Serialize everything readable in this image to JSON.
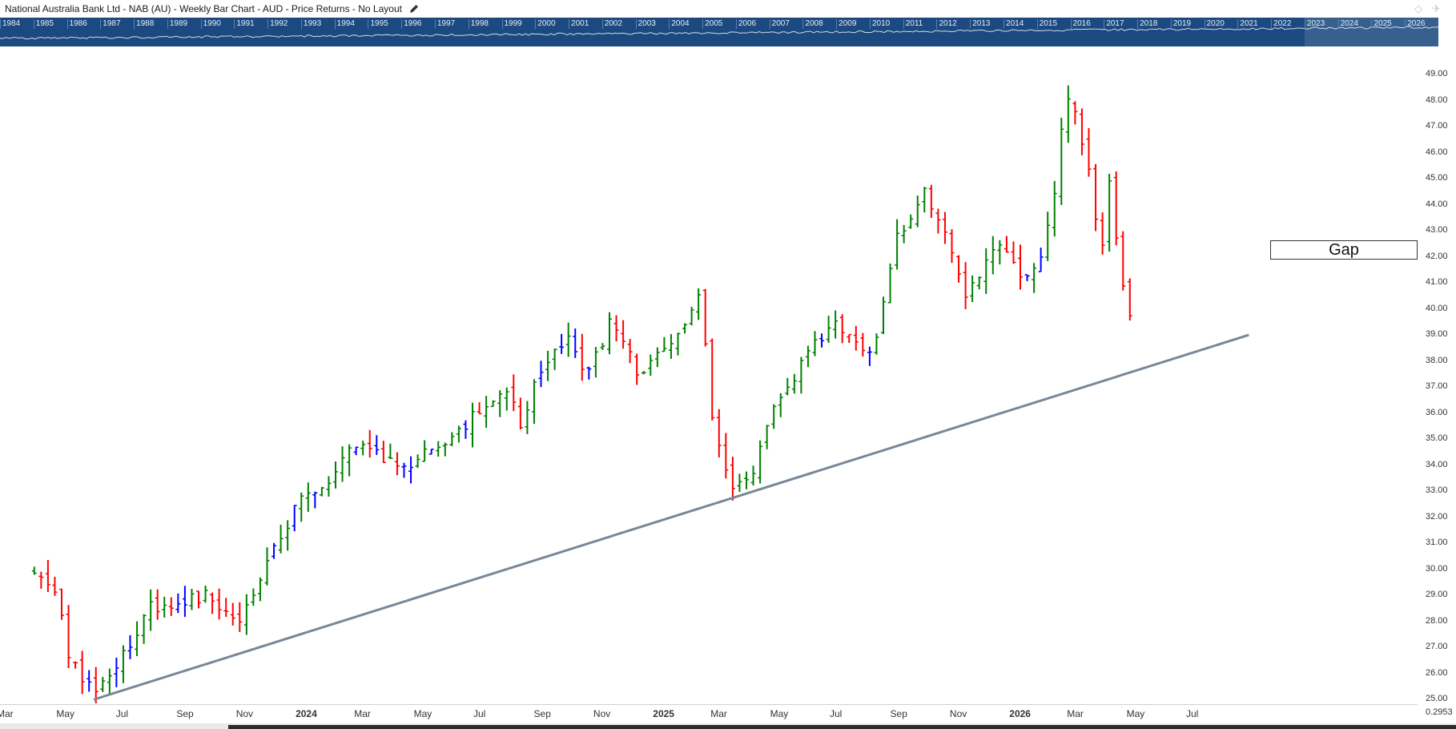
{
  "header": {
    "title": "National Australia Bank Ltd - NAB (AU) - Weekly Bar Chart - AUD - Price Returns - No Layout",
    "edit_icon": "pencil-icon",
    "pin_icon": "diamond-icon",
    "options_icon": "pin-icon"
  },
  "navigator": {
    "years": [
      "1984",
      "1985",
      "1986",
      "1987",
      "1988",
      "1989",
      "1990",
      "1991",
      "1992",
      "1993",
      "1994",
      "1995",
      "1996",
      "1997",
      "1998",
      "1999",
      "2000",
      "2001",
      "2002",
      "2003",
      "2004",
      "2005",
      "2006",
      "2007",
      "2008",
      "2009",
      "2010",
      "2011",
      "2012",
      "2013",
      "2014",
      "2015",
      "2016",
      "2017",
      "2018",
      "2019",
      "2020",
      "2021",
      "2022",
      "2023",
      "2024",
      "2025",
      "2026"
    ],
    "window_start_year": "2023"
  },
  "annotations": {
    "gap_label": "Gap",
    "trendline": {
      "from": {
        "date": "2023-06-05",
        "price": 25.0
      },
      "to": {
        "date": "2026-08-31",
        "price": 39.0
      }
    }
  },
  "corner_value": "0.2953",
  "colors": {
    "up": "#008000",
    "down": "#ff0000",
    "neutral": "#0000ff",
    "trendline": "#778899",
    "navigator": "#1c4a80"
  },
  "chart_data": {
    "type": "bar",
    "subtype": "ohlc-weekly",
    "series_colors": "green = close above previous close, red = close below previous close, blue = unchanged",
    "x_tick_labels": [
      "Mar",
      "May",
      "Jul",
      "Sep",
      "Nov",
      "2024",
      "Mar",
      "May",
      "Jul",
      "Sep",
      "Nov",
      "2025",
      "Mar",
      "May",
      "Jul",
      "Sep",
      "Nov",
      "2026",
      "Mar",
      "May",
      "Jul"
    ],
    "y_tick_labels": [
      "25.00",
      "26.00",
      "27.00",
      "28.00",
      "29.00",
      "30.00",
      "31.00",
      "32.00",
      "33.00",
      "34.00",
      "35.00",
      "36.00",
      "37.00",
      "38.00",
      "39.00",
      "40.00",
      "41.00",
      "42.00",
      "43.00",
      "44.00",
      "45.00",
      "46.00",
      "47.00",
      "48.00",
      "49.00"
    ],
    "ylim": [
      24.7,
      49.8
    ],
    "grid": false,
    "anchors": [
      {
        "date": "2023-04-01",
        "price": 29.9
      },
      {
        "date": "2023-05-01",
        "price": 29.0
      },
      {
        "date": "2023-05-10",
        "price": 26.6
      },
      {
        "date": "2023-06-05",
        "price": 25.3
      },
      {
        "date": "2023-07-01",
        "price": 26.5
      },
      {
        "date": "2023-08-01",
        "price": 28.5
      },
      {
        "date": "2023-09-01",
        "price": 28.8
      },
      {
        "date": "2023-10-01",
        "price": 29.0
      },
      {
        "date": "2023-11-01",
        "price": 28.0
      },
      {
        "date": "2023-12-01",
        "price": 30.5
      },
      {
        "date": "2024-01-01",
        "price": 32.5
      },
      {
        "date": "2024-02-01",
        "price": 33.5
      },
      {
        "date": "2024-03-01",
        "price": 35.0
      },
      {
        "date": "2024-04-01",
        "price": 34.0
      },
      {
        "date": "2024-05-01",
        "price": 34.2
      },
      {
        "date": "2024-06-01",
        "price": 35.0
      },
      {
        "date": "2024-07-01",
        "price": 36.0
      },
      {
        "date": "2024-08-01",
        "price": 37.0
      },
      {
        "date": "2024-08-15",
        "price": 35.5
      },
      {
        "date": "2024-09-01",
        "price": 37.5
      },
      {
        "date": "2024-10-01",
        "price": 39.0
      },
      {
        "date": "2024-10-20",
        "price": 37.2
      },
      {
        "date": "2024-11-15",
        "price": 39.5
      },
      {
        "date": "2024-12-15",
        "price": 37.5
      },
      {
        "date": "2025-01-15",
        "price": 38.5
      },
      {
        "date": "2025-02-15",
        "price": 40.5
      },
      {
        "date": "2025-03-01",
        "price": 35.2
      },
      {
        "date": "2025-03-20",
        "price": 33.0
      },
      {
        "date": "2025-04-07",
        "price": 33.5
      },
      {
        "date": "2025-05-01",
        "price": 36.0
      },
      {
        "date": "2025-06-01",
        "price": 38.0
      },
      {
        "date": "2025-07-01",
        "price": 39.5
      },
      {
        "date": "2025-08-01",
        "price": 38.3
      },
      {
        "date": "2025-08-15",
        "price": 38.8
      },
      {
        "date": "2025-09-01",
        "price": 42.5
      },
      {
        "date": "2025-10-01",
        "price": 44.5
      },
      {
        "date": "2025-10-20",
        "price": 43.5
      },
      {
        "date": "2025-11-15",
        "price": 40.5
      },
      {
        "date": "2025-12-15",
        "price": 42.5
      },
      {
        "date": "2026-01-20",
        "price": 41.0
      },
      {
        "date": "2026-02-10",
        "price": 43.5
      },
      {
        "date": "2026-02-25",
        "price": 48.5
      },
      {
        "date": "2026-03-05",
        "price": 47.5
      },
      {
        "date": "2026-03-20",
        "price": 45.5
      },
      {
        "date": "2026-04-01",
        "price": 41.8
      },
      {
        "date": "2026-04-10",
        "price": 45.0
      },
      {
        "date": "2026-04-20",
        "price": 41.5
      },
      {
        "date": "2026-05-01",
        "price": 39.7
      },
      {
        "date": "2026-05-06",
        "price": 39.5
      }
    ]
  }
}
